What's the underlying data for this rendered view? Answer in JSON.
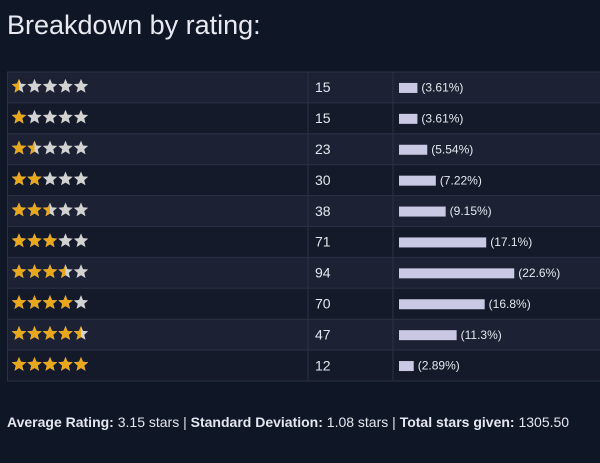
{
  "title": "Breakdown by rating:",
  "rows": [
    {
      "rating": 0.5,
      "count": 15,
      "percent": 3.61,
      "percent_label": "(3.61%)"
    },
    {
      "rating": 1,
      "count": 15,
      "percent": 3.61,
      "percent_label": "(3.61%)"
    },
    {
      "rating": 1.5,
      "count": 23,
      "percent": 5.54,
      "percent_label": "(5.54%)"
    },
    {
      "rating": 2,
      "count": 30,
      "percent": 7.22,
      "percent_label": "(7.22%)"
    },
    {
      "rating": 2.5,
      "count": 38,
      "percent": 9.15,
      "percent_label": "(9.15%)"
    },
    {
      "rating": 3,
      "count": 71,
      "percent": 17.1,
      "percent_label": "(17.1%)"
    },
    {
      "rating": 3.5,
      "count": 94,
      "percent": 22.6,
      "percent_label": "(22.6%)"
    },
    {
      "rating": 4,
      "count": 70,
      "percent": 16.8,
      "percent_label": "(16.8%)"
    },
    {
      "rating": 4.5,
      "count": 47,
      "percent": 11.3,
      "percent_label": "(11.3%)"
    },
    {
      "rating": 5,
      "count": 12,
      "percent": 2.89,
      "percent_label": "(2.89%)"
    }
  ],
  "footer": {
    "separator": "|",
    "items": [
      {
        "label": "Average Rating:",
        "value": "3.15 stars"
      },
      {
        "label": "Standard Deviation:",
        "value": "1.08 stars"
      },
      {
        "label": "Total stars given:",
        "value": "1305.50"
      }
    ]
  }
}
